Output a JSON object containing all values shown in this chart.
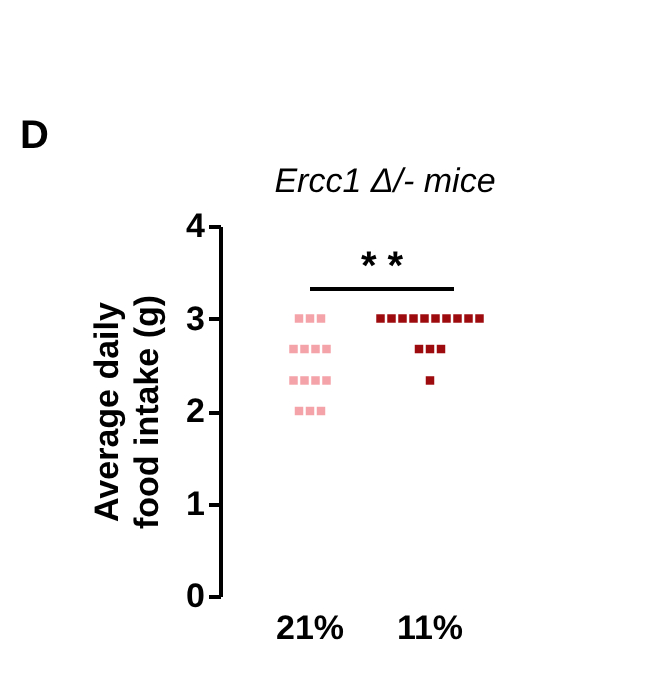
{
  "chart_data": {
    "type": "scatter",
    "title": "Ercc1 Δ/- mice",
    "ylabel": "Average daily food intake (g)",
    "categories": [
      "21%",
      "11%"
    ],
    "series": [
      {
        "x": [
          "21%",
          "21%",
          "21%",
          "21%",
          "21%",
          "21%",
          "21%",
          "21%",
          "21%",
          "21%",
          "21%",
          "21%",
          "21%",
          "21%"
        ],
        "color": "#f4a3a8",
        "values": [
          3,
          3,
          3,
          2.67,
          2.67,
          2.67,
          2.67,
          2.33,
          2.33,
          2.33,
          2.33,
          2,
          2,
          2
        ]
      },
      {
        "x": [
          "11%",
          "11%",
          "11%",
          "11%",
          "11%",
          "11%",
          "11%",
          "11%",
          "11%",
          "11%",
          "11%",
          "11%",
          "11%",
          "11%"
        ],
        "color": "#9e0b0f",
        "values": [
          3,
          3,
          3,
          3,
          3,
          3,
          3,
          3,
          3,
          3,
          2.67,
          2.67,
          2.67,
          2.33
        ]
      }
    ],
    "ylim": [
      0,
      4
    ],
    "yticks": [
      0,
      1,
      2,
      3,
      4
    ],
    "marker": "square",
    "grid": false,
    "annotations": [
      "D",
      "* *"
    ]
  }
}
